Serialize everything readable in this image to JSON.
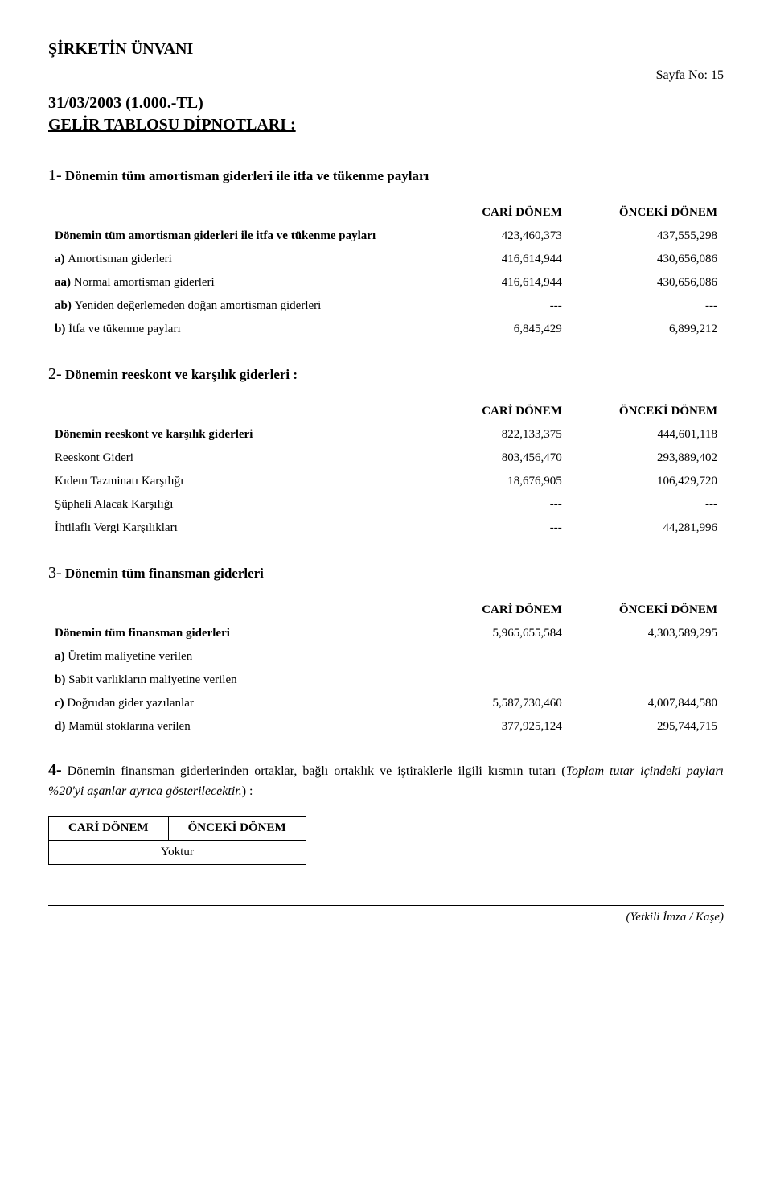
{
  "header": {
    "company_title": "ŞİRKETİN ÜNVANI",
    "page_no": "Sayfa No: 15",
    "date_line": "31/03/2003 (1.000.-TL)",
    "subtitle": "GELİR TABLOSU DİPNOTLARI :"
  },
  "columns": {
    "cari": "CARİ DÖNEM",
    "onceki": "ÖNCEKİ DÖNEM"
  },
  "section1": {
    "num": "1-",
    "title": "Dönemin tüm amortisman giderleri ile itfa ve tükenme payları",
    "rows": [
      {
        "label": "Dönemin tüm amortisman giderleri ile itfa ve tükenme payları",
        "v1": "423,460,373",
        "v2": "437,555,298",
        "boldpart": ""
      },
      {
        "label": "Amortisman giderleri",
        "v1": "416,614,944",
        "v2": "430,656,086",
        "boldpart": "a) "
      },
      {
        "label": "Normal amortisman giderleri",
        "v1": "416,614,944",
        "v2": "430,656,086",
        "boldpart": "aa) "
      },
      {
        "label": "Yeniden değerlemeden doğan amortisman giderleri",
        "v1": "---",
        "v2": "---",
        "boldpart": "ab) "
      },
      {
        "label": "İtfa ve tükenme payları",
        "v1": "6,845,429",
        "v2": "6,899,212",
        "boldpart": "b) "
      }
    ]
  },
  "section2": {
    "num": "2-",
    "title": "Dönemin reeskont ve karşılık giderleri :",
    "rows": [
      {
        "label": "Dönemin reeskont ve karşılık giderleri",
        "v1": "822,133,375",
        "v2": "444,601,118",
        "boldpart": ""
      },
      {
        "label": "Reeskont Gideri",
        "v1": "803,456,470",
        "v2": "293,889,402",
        "boldpart": ""
      },
      {
        "label": "Kıdem Tazminatı Karşılığı",
        "v1": "18,676,905",
        "v2": "106,429,720",
        "boldpart": ""
      },
      {
        "label": "Şüpheli Alacak Karşılığı",
        "v1": "---",
        "v2": "---",
        "boldpart": ""
      },
      {
        "label": "İhtilaflı Vergi Karşılıkları",
        "v1": "---",
        "v2": "44,281,996",
        "boldpart": ""
      }
    ]
  },
  "section3": {
    "num": "3-",
    "title": "Dönemin tüm finansman giderleri",
    "rows": [
      {
        "label": "Dönemin tüm finansman giderleri",
        "v1": "5,965,655,584",
        "v2": "4,303,589,295",
        "boldpart": ""
      },
      {
        "label": "Üretim maliyetine verilen",
        "v1": "",
        "v2": "",
        "boldpart": "a) "
      },
      {
        "label": "Sabit varlıkların maliyetine verilen",
        "v1": "",
        "v2": "",
        "boldpart": "b) "
      },
      {
        "label": "Doğrudan gider yazılanlar",
        "v1": "5,587,730,460",
        "v2": "4,007,844,580",
        "boldpart": "c) "
      },
      {
        "label": "Mamül stoklarına verilen",
        "v1": "377,925,124",
        "v2": "295,744,715",
        "boldpart": "d) "
      }
    ]
  },
  "section4": {
    "num": "4-",
    "text_part1": " Dönemin finansman giderlerinden ortaklar, bağlı ortaklık ve iştiraklerle ilgili kısmın tutarı (",
    "italic": "Toplam tutar içindeki payları %20'yi aşanlar ayrıca gösterilecektir.",
    "text_part2": ") :",
    "yoktur": "Yoktur"
  },
  "footer": {
    "sign": "(Yetkili İmza / Kaşe)"
  }
}
